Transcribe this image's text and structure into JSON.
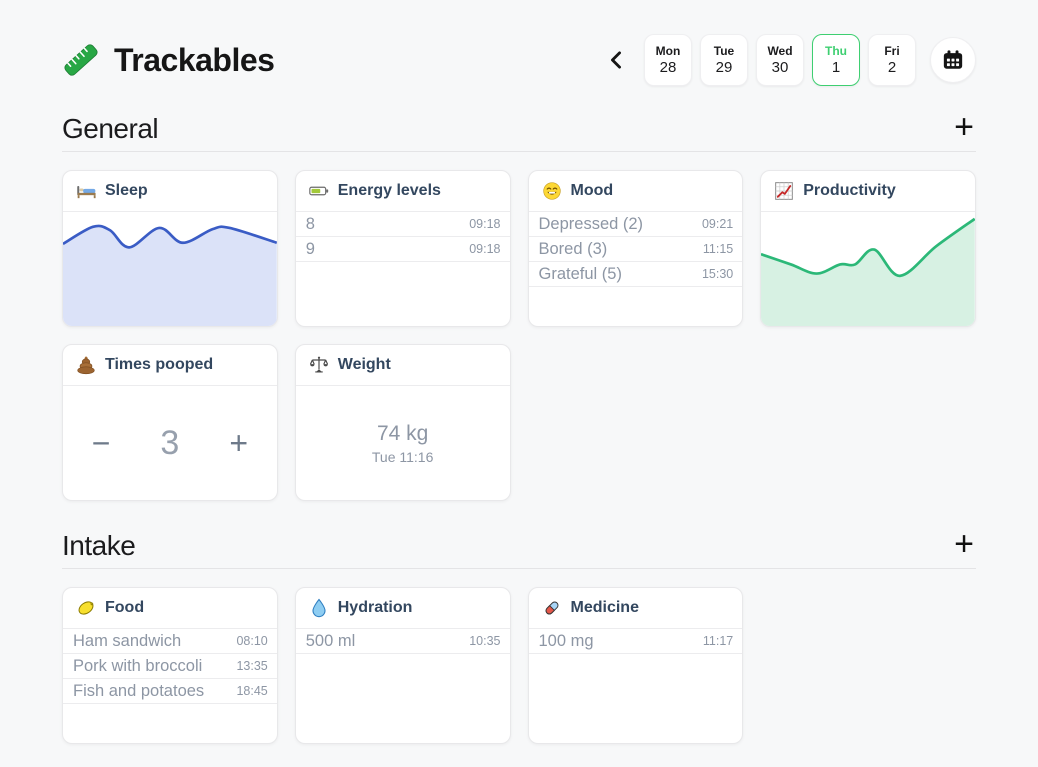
{
  "app": {
    "title": "Trackables",
    "logo_icon": "green-ruler-icon"
  },
  "date_nav": {
    "prev_icon": "chevron-left-icon",
    "calendar_icon": "calendar-icon",
    "selected_color": "#3ecf71",
    "days": [
      {
        "weekday": "Mon",
        "day": "28",
        "selected": false
      },
      {
        "weekday": "Tue",
        "day": "29",
        "selected": false
      },
      {
        "weekday": "Wed",
        "day": "30",
        "selected": false
      },
      {
        "weekday": "Thu",
        "day": "1",
        "selected": true
      },
      {
        "weekday": "Fri",
        "day": "2",
        "selected": false
      }
    ]
  },
  "sections": {
    "general": {
      "title": "General",
      "add_label": "+"
    },
    "intake": {
      "title": "Intake",
      "add_label": "+"
    }
  },
  "cards": {
    "sleep": {
      "title": "Sleep",
      "icon": "bed-icon",
      "type": "area-chart"
    },
    "energy": {
      "title": "Energy levels",
      "icon": "battery-icon",
      "entries": [
        {
          "value": "8",
          "time": "09:18"
        },
        {
          "value": "9",
          "time": "09:18"
        }
      ]
    },
    "mood": {
      "title": "Mood",
      "icon": "smiley-icon",
      "entries": [
        {
          "value": "Depressed (2)",
          "time": "09:21"
        },
        {
          "value": "Bored (3)",
          "time": "11:15"
        },
        {
          "value": "Grateful (5)",
          "time": "15:30"
        }
      ]
    },
    "productivity": {
      "title": "Productivity",
      "icon": "chart-grid-icon",
      "type": "area-chart"
    },
    "times_pooped": {
      "title": "Times pooped",
      "icon": "poop-icon",
      "value": "3",
      "decrement_label": "−",
      "increment_label": "+"
    },
    "weight": {
      "title": "Weight",
      "icon": "scale-icon",
      "value": "74 kg",
      "timestamp": "Tue 11:16"
    },
    "food": {
      "title": "Food",
      "icon": "lemon-icon",
      "entries": [
        {
          "value": "Ham sandwich",
          "time": "08:10"
        },
        {
          "value": "Pork with broccoli",
          "time": "13:35"
        },
        {
          "value": "Fish and potatoes",
          "time": "18:45"
        }
      ]
    },
    "hydration": {
      "title": "Hydration",
      "icon": "droplet-icon",
      "entries": [
        {
          "value": "500 ml",
          "time": "10:35"
        }
      ]
    },
    "medicine": {
      "title": "Medicine",
      "icon": "pill-icon",
      "entries": [
        {
          "value": "100 mg",
          "time": "11:17"
        }
      ]
    }
  },
  "chart_data": [
    {
      "type": "area",
      "name": "sleep",
      "title": "Sleep sparkline",
      "x_range": [
        0,
        100
      ],
      "y_range": [
        0,
        100
      ],
      "points": [
        [
          0,
          28
        ],
        [
          14,
          13
        ],
        [
          22,
          16
        ],
        [
          31,
          31
        ],
        [
          45,
          14
        ],
        [
          56,
          27
        ],
        [
          70,
          15
        ],
        [
          78,
          14
        ],
        [
          100,
          27
        ]
      ],
      "line_color": "#3a5cc5",
      "fill_color": "#dbe2f8",
      "fills_to_bottom": true
    },
    {
      "type": "area",
      "name": "productivity",
      "title": "Productivity sparkline",
      "x_range": [
        0,
        100
      ],
      "y_range": [
        0,
        100
      ],
      "points": [
        [
          0,
          37
        ],
        [
          14,
          46
        ],
        [
          26,
          54
        ],
        [
          37,
          46
        ],
        [
          44,
          46
        ],
        [
          53,
          33
        ],
        [
          65,
          56
        ],
        [
          82,
          30
        ],
        [
          100,
          6
        ]
      ],
      "line_color": "#2cb878",
      "fill_color": "#d7f1e3",
      "fills_to_bottom": true
    }
  ]
}
